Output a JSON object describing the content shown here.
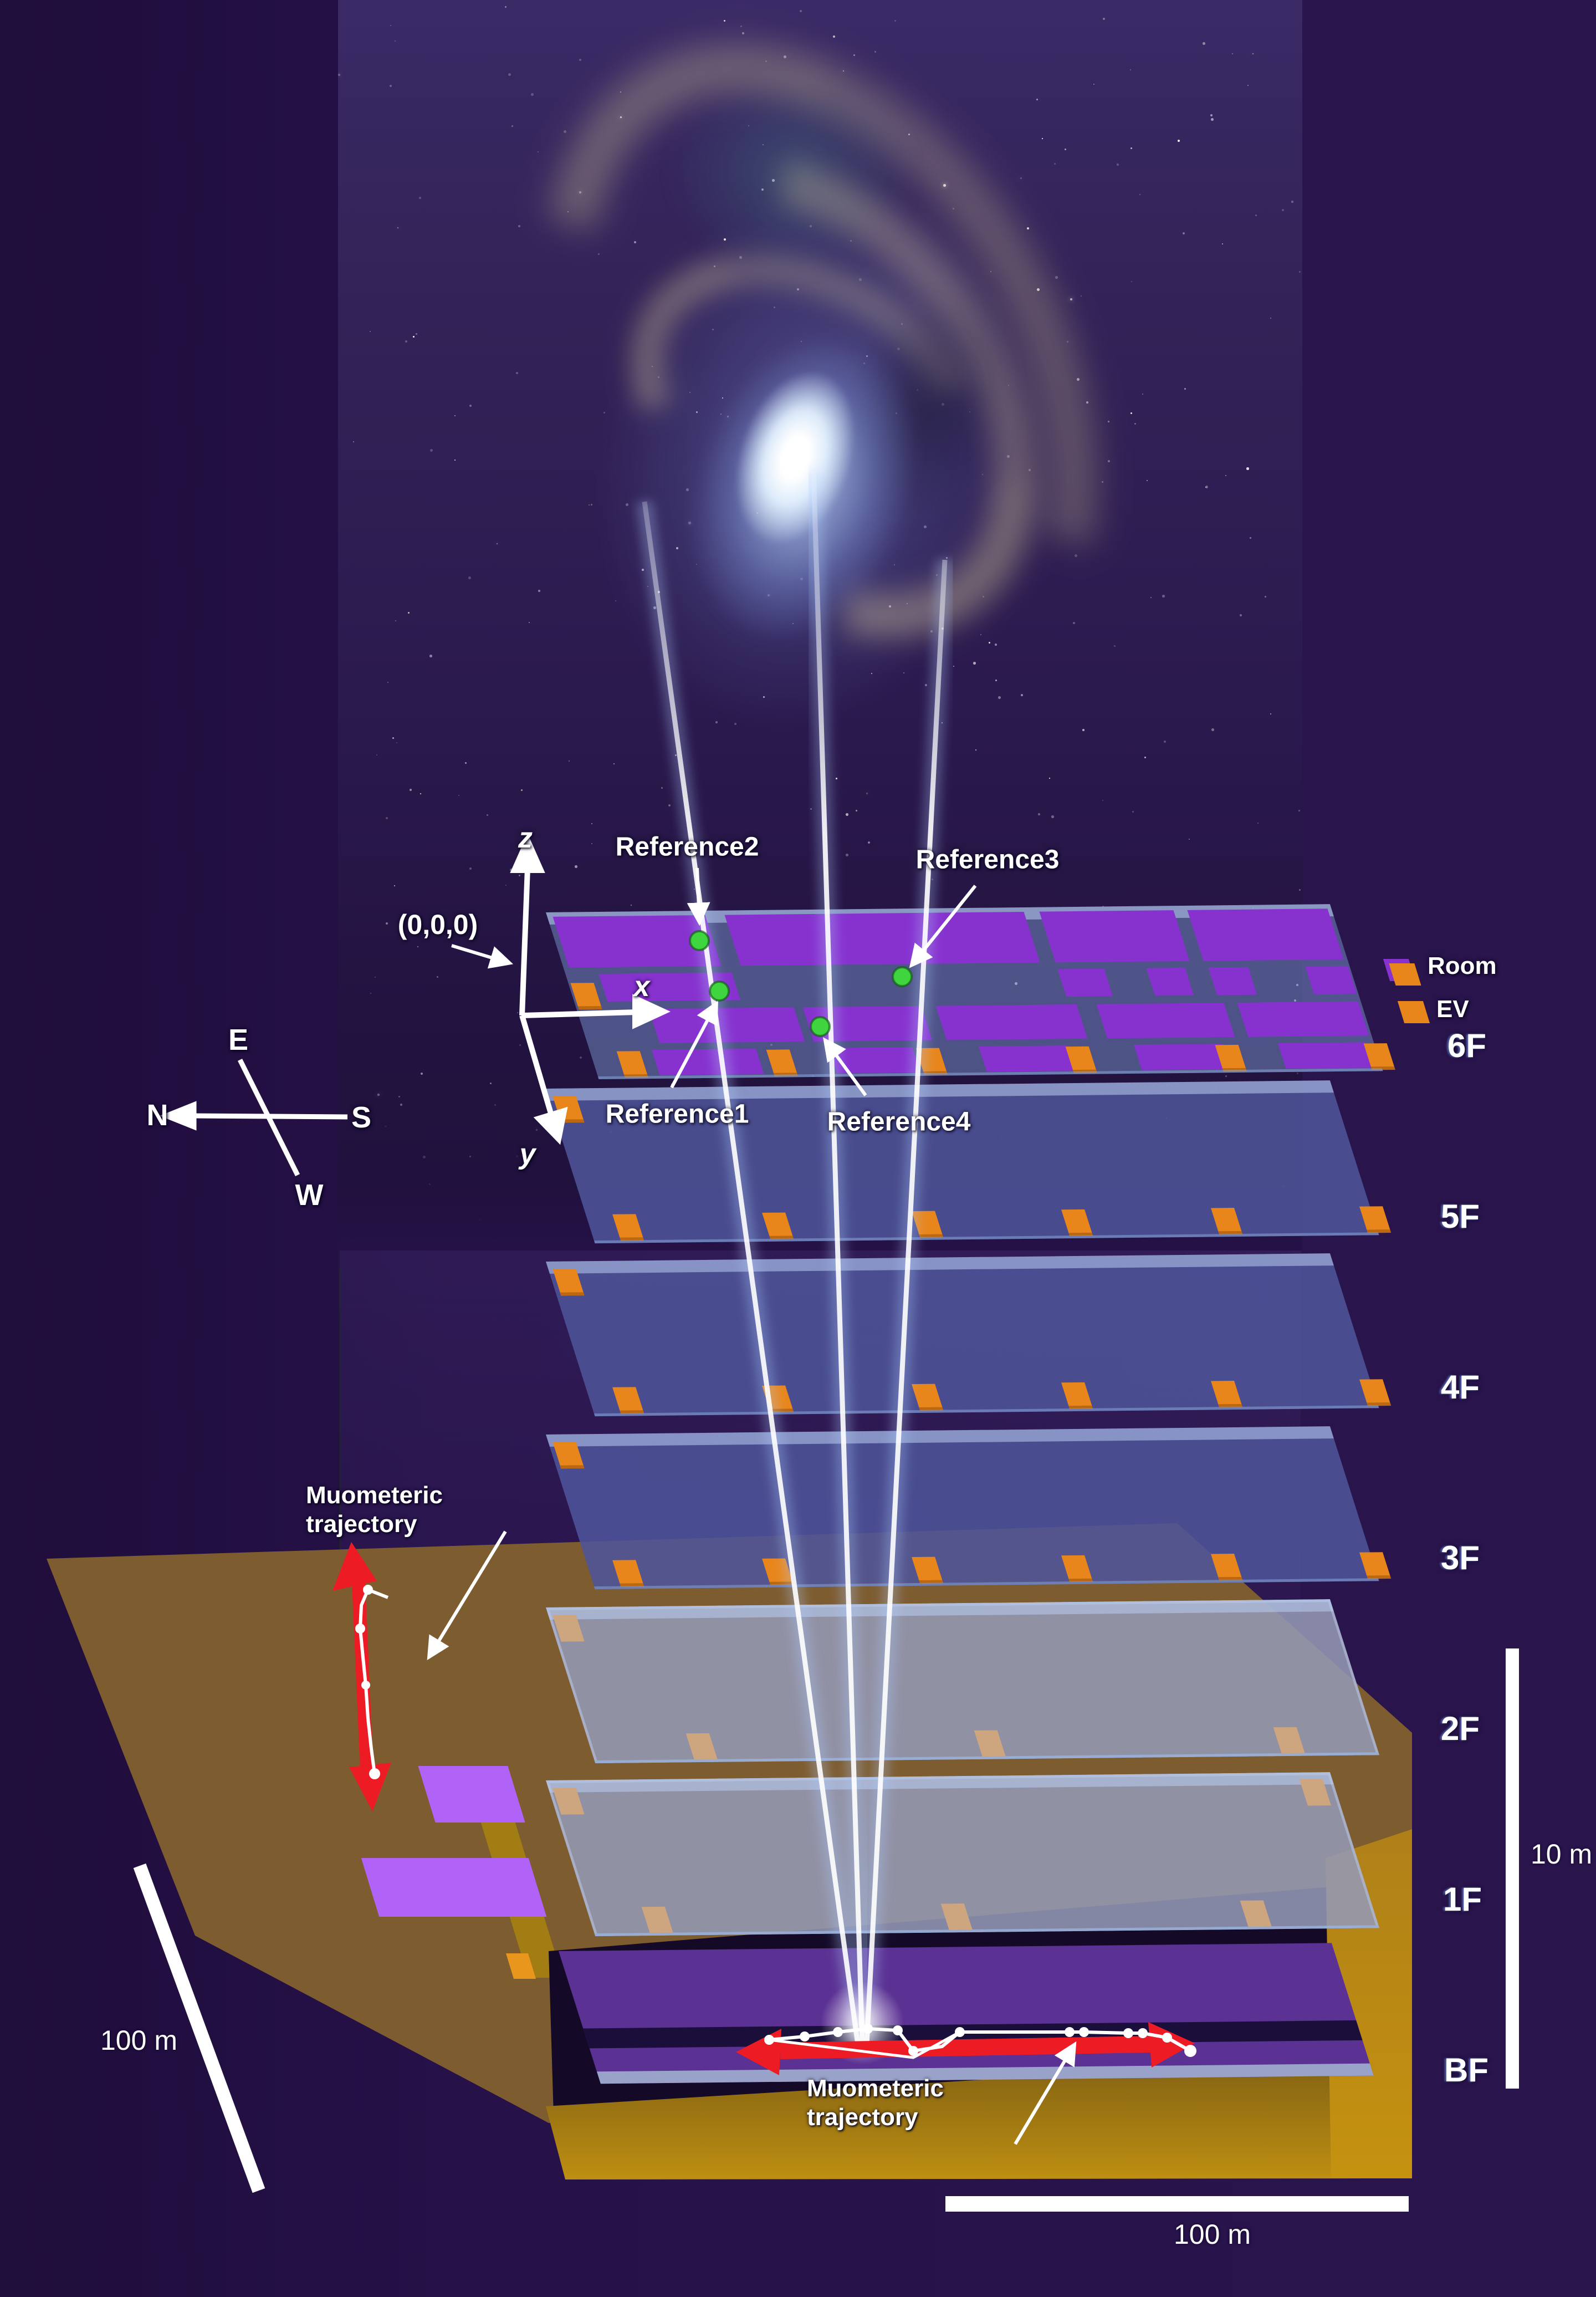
{
  "figure": {
    "title_hint": "Muometric positioning diagram with building floors and muon trajectories",
    "origin_label": "(0,0,0)",
    "axes": {
      "z": "z",
      "x": "x",
      "y": "y"
    },
    "references": [
      {
        "label": "Reference2"
      },
      {
        "label": "Reference3"
      },
      {
        "label": "Reference1"
      },
      {
        "label": "Reference4"
      }
    ],
    "legend": {
      "items": [
        {
          "label": "Room",
          "color": "#8732cf"
        },
        {
          "label": "EV",
          "color": "#e8861c"
        }
      ]
    },
    "floors": [
      {
        "label": "6F"
      },
      {
        "label": "5F"
      },
      {
        "label": "4F"
      },
      {
        "label": "3F"
      },
      {
        "label": "2F"
      },
      {
        "label": "1F"
      },
      {
        "label": "BF"
      }
    ],
    "compass": {
      "e": "E",
      "n": "N",
      "s": "S",
      "w": "W"
    },
    "trajectory_labels": [
      {
        "text": "Muometeric trajectory"
      },
      {
        "text": "Muometeric trajectory"
      }
    ],
    "scale_bars": [
      {
        "label": "100 m",
        "position": "left-diagonal"
      },
      {
        "label": "10 m",
        "position": "right-vertical"
      },
      {
        "label": "100 m",
        "position": "bottom-horizontal"
      }
    ],
    "colors": {
      "background": "#261148",
      "room_purple": "#8732cf",
      "ev_orange": "#e8861c",
      "floor_blue": "#4d5498",
      "floor_gray": "#9499b2",
      "basement_purple": "#5b3193",
      "ground_brown": "#7d5c30",
      "ground_gold": "#d6a210",
      "violet_room": "#b163f8",
      "trajectory_red": "#ed1c24",
      "reference_green": "#3fd53f",
      "beam_white": "#ffffff"
    }
  }
}
